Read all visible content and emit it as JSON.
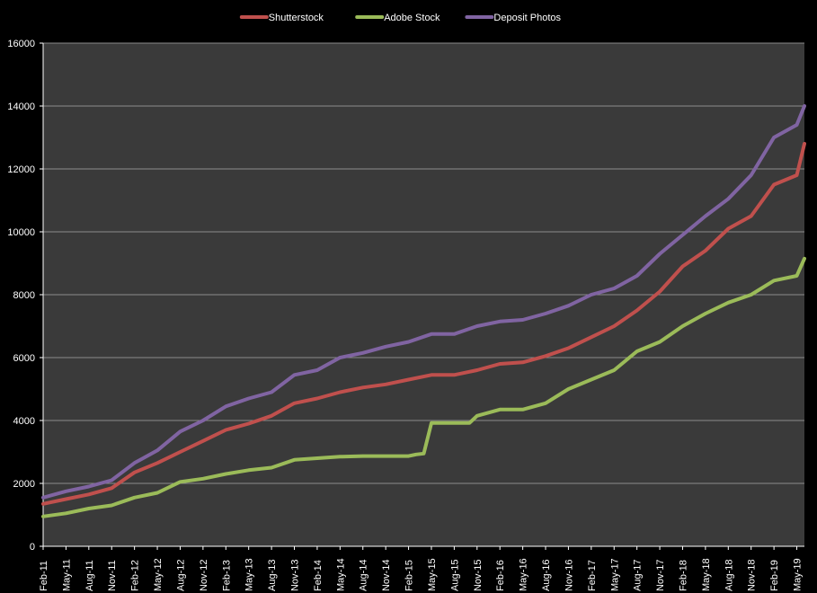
{
  "chart_data": {
    "type": "line",
    "background": "#000000",
    "plot_background": "#3a3a3a",
    "grid_color": "#8c8c8c",
    "grid": true,
    "legend_position": "top",
    "title": "",
    "xlabel": "",
    "ylabel": "",
    "ylim": [
      0,
      16000
    ],
    "yticks": [
      "0",
      "2000",
      "4000",
      "6000",
      "8000",
      "10000",
      "12000",
      "14000",
      "16000"
    ],
    "x_tick_labels": [
      "Feb-11",
      "May-11",
      "Aug-11",
      "Nov-11",
      "Feb-12",
      "May-12",
      "Aug-12",
      "Nov-12",
      "Feb-13",
      "May-13",
      "Aug-13",
      "Nov-13",
      "Feb-14",
      "May-14",
      "Aug-14",
      "Nov-14",
      "Feb-15",
      "May-15",
      "Aug-15",
      "Nov-15",
      "Feb-16",
      "May-16",
      "Aug-16",
      "Nov-16",
      "Feb-17",
      "May-17",
      "Aug-17",
      "Nov-17",
      "Feb-18",
      "May-18",
      "Aug-18",
      "Nov-18",
      "Feb-19",
      "May-19"
    ],
    "x_start": "Feb-11",
    "x_end": "Jun-19",
    "series": [
      {
        "name": "Shutterstock",
        "color": "#c0504d",
        "points": [
          [
            "Feb-11",
            1350
          ],
          [
            "May-11",
            1500
          ],
          [
            "Aug-11",
            1650
          ],
          [
            "Nov-11",
            1850
          ],
          [
            "Feb-12",
            2350
          ],
          [
            "May-12",
            2650
          ],
          [
            "Aug-12",
            3000
          ],
          [
            "Nov-12",
            3350
          ],
          [
            "Feb-13",
            3700
          ],
          [
            "May-13",
            3900
          ],
          [
            "Aug-13",
            4150
          ],
          [
            "Nov-13",
            4550
          ],
          [
            "Feb-14",
            4700
          ],
          [
            "May-14",
            4900
          ],
          [
            "Aug-14",
            5050
          ],
          [
            "Nov-14",
            5150
          ],
          [
            "Feb-15",
            5300
          ],
          [
            "May-15",
            5450
          ],
          [
            "Aug-15",
            5450
          ],
          [
            "Nov-15",
            5600
          ],
          [
            "Feb-16",
            5800
          ],
          [
            "May-16",
            5850
          ],
          [
            "Aug-16",
            6050
          ],
          [
            "Nov-16",
            6300
          ],
          [
            "Feb-17",
            6650
          ],
          [
            "May-17",
            7000
          ],
          [
            "Aug-17",
            7500
          ],
          [
            "Nov-17",
            8100
          ],
          [
            "Feb-18",
            8900
          ],
          [
            "May-18",
            9400
          ],
          [
            "Aug-18",
            10100
          ],
          [
            "Nov-18",
            10500
          ],
          [
            "Feb-19",
            11500
          ],
          [
            "May-19",
            11800
          ],
          [
            "Jun-19",
            12800
          ]
        ]
      },
      {
        "name": "Adobe Stock",
        "color": "#9bbb59",
        "points": [
          [
            "Feb-11",
            950
          ],
          [
            "May-11",
            1050
          ],
          [
            "Aug-11",
            1200
          ],
          [
            "Nov-11",
            1300
          ],
          [
            "Feb-12",
            1550
          ],
          [
            "May-12",
            1700
          ],
          [
            "Aug-12",
            2050
          ],
          [
            "Nov-12",
            2150
          ],
          [
            "Feb-13",
            2300
          ],
          [
            "May-13",
            2420
          ],
          [
            "Aug-13",
            2500
          ],
          [
            "Nov-13",
            2750
          ],
          [
            "Feb-14",
            2800
          ],
          [
            "May-14",
            2850
          ],
          [
            "Aug-14",
            2870
          ],
          [
            "Nov-14",
            2870
          ],
          [
            "Feb-15",
            2870
          ],
          [
            "Mar-15",
            2920
          ],
          [
            "Apr-15",
            2950
          ],
          [
            "May-15",
            3920
          ],
          [
            "Aug-15",
            3920
          ],
          [
            "Oct-15",
            3920
          ],
          [
            "Nov-15",
            4150
          ],
          [
            "Feb-16",
            4350
          ],
          [
            "May-16",
            4350
          ],
          [
            "Aug-16",
            4550
          ],
          [
            "Nov-16",
            5000
          ],
          [
            "Feb-17",
            5300
          ],
          [
            "May-17",
            5600
          ],
          [
            "Aug-17",
            6200
          ],
          [
            "Nov-17",
            6500
          ],
          [
            "Feb-18",
            7000
          ],
          [
            "May-18",
            7400
          ],
          [
            "Aug-18",
            7750
          ],
          [
            "Nov-18",
            8000
          ],
          [
            "Feb-19",
            8450
          ],
          [
            "May-19",
            8600
          ],
          [
            "Jun-19",
            9150
          ]
        ]
      },
      {
        "name": "Deposit Photos",
        "color": "#8064a2",
        "points": [
          [
            "Feb-11",
            1550
          ],
          [
            "May-11",
            1750
          ],
          [
            "Aug-11",
            1900
          ],
          [
            "Nov-11",
            2100
          ],
          [
            "Feb-12",
            2650
          ],
          [
            "May-12",
            3050
          ],
          [
            "Aug-12",
            3650
          ],
          [
            "Nov-12",
            4000
          ],
          [
            "Feb-13",
            4450
          ],
          [
            "May-13",
            4700
          ],
          [
            "Aug-13",
            4900
          ],
          [
            "Nov-13",
            5450
          ],
          [
            "Feb-14",
            5600
          ],
          [
            "May-14",
            6000
          ],
          [
            "Aug-14",
            6150
          ],
          [
            "Nov-14",
            6350
          ],
          [
            "Feb-15",
            6500
          ],
          [
            "May-15",
            6750
          ],
          [
            "Aug-15",
            6750
          ],
          [
            "Nov-15",
            7000
          ],
          [
            "Feb-16",
            7150
          ],
          [
            "May-16",
            7200
          ],
          [
            "Aug-16",
            7400
          ],
          [
            "Nov-16",
            7650
          ],
          [
            "Feb-17",
            8000
          ],
          [
            "May-17",
            8200
          ],
          [
            "Aug-17",
            8600
          ],
          [
            "Nov-17",
            9300
          ],
          [
            "Feb-18",
            9900
          ],
          [
            "May-18",
            10500
          ],
          [
            "Aug-18",
            11050
          ],
          [
            "Nov-18",
            11800
          ],
          [
            "Feb-19",
            13000
          ],
          [
            "May-19",
            13400
          ],
          [
            "Jun-19",
            14000
          ]
        ]
      }
    ]
  }
}
